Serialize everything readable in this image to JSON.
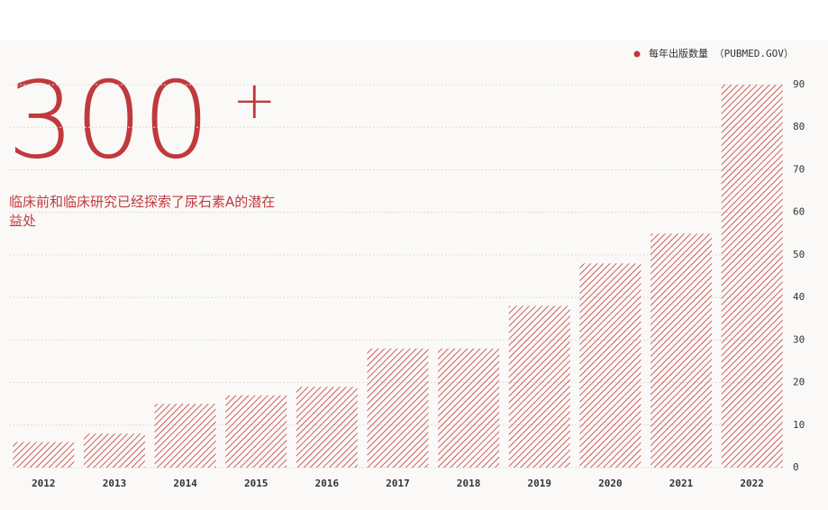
{
  "chart_data": {
    "type": "bar",
    "big_number": "300",
    "big_suffix": "+",
    "description": "临床前和临床研究已经探索了尿石素A的潜在益处",
    "categories": [
      "2012",
      "2013",
      "2014",
      "2015",
      "2016",
      "2017",
      "2018",
      "2019",
      "2020",
      "2021",
      "2022"
    ],
    "series": [
      {
        "name": "每年出版数量 （PUBMED.GOV）",
        "color": "#c0393d",
        "values": [
          6,
          8,
          15,
          17,
          19,
          28,
          28,
          38,
          48,
          55,
          90
        ]
      }
    ],
    "ylim": [
      0,
      90
    ],
    "yticks": [
      0,
      10,
      20,
      30,
      40,
      50,
      60,
      70,
      80,
      90
    ],
    "grid": true,
    "legend": "top-right"
  }
}
